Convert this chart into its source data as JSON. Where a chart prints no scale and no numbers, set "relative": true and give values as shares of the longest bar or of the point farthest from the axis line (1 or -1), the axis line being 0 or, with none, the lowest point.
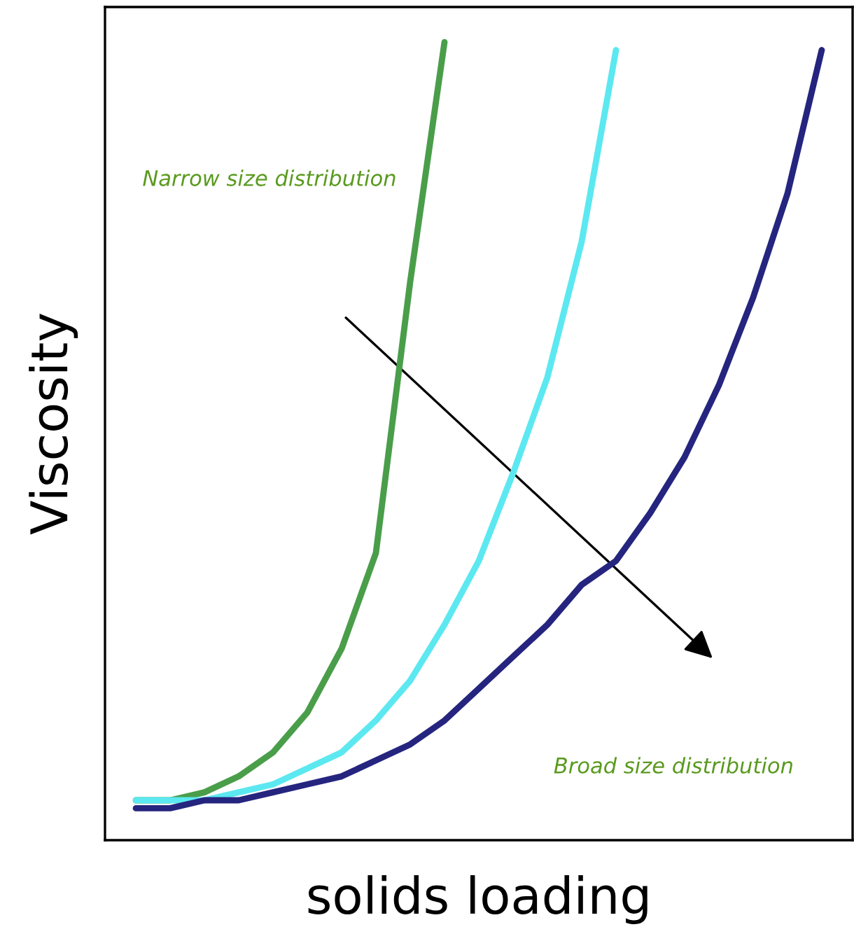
{
  "chart_data": {
    "type": "line",
    "relative": true,
    "xlabel": "solids loading",
    "ylabel": "Viscosity",
    "categories": [
      null,
      null,
      null,
      null,
      null,
      null,
      null,
      null,
      null,
      null,
      null,
      null,
      null,
      null,
      null,
      null,
      null,
      null,
      null,
      null,
      null
    ],
    "series": [
      {
        "color": "#4a9e4a",
        "values": [
          0.05,
          0.05,
          0.06,
          0.08,
          0.11,
          0.16,
          0.24,
          0.36,
          0.7,
          1.0,
          null,
          null,
          null,
          null,
          null,
          null,
          null,
          null,
          null,
          null,
          null
        ]
      },
      {
        "color": "#5ce8f0",
        "values": [
          0.05,
          0.05,
          0.05,
          0.06,
          0.07,
          0.09,
          0.11,
          0.15,
          0.2,
          0.27,
          0.35,
          0.46,
          0.58,
          0.75,
          0.99,
          null,
          null,
          null,
          null,
          null,
          null
        ]
      },
      {
        "color": "#25257f",
        "values": [
          0.04,
          0.04,
          0.05,
          0.05,
          0.06,
          0.07,
          0.08,
          0.1,
          0.12,
          0.15,
          0.19,
          0.23,
          0.27,
          0.32,
          0.35,
          0.41,
          0.48,
          0.57,
          0.68,
          0.81,
          0.99
        ]
      }
    ],
    "annotations": [
      "Narrow size distribution",
      "Broad size distribution"
    ],
    "legend": false,
    "marker": "none",
    "line_style": "solid"
  }
}
